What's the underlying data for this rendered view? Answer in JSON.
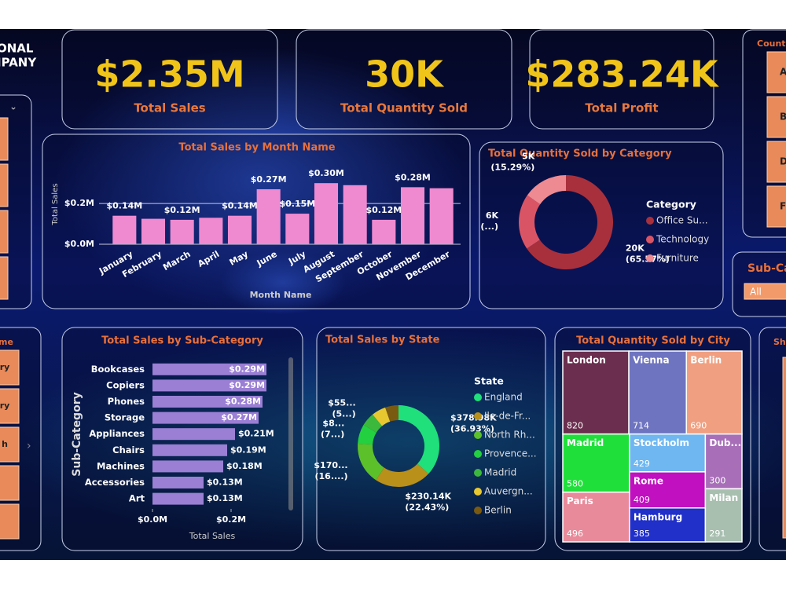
{
  "header": {
    "title_lines": [
      "ONAL",
      "IPANY"
    ]
  },
  "kpis": [
    {
      "value": "$2.35M",
      "label": "Total Sales"
    },
    {
      "value": "30K",
      "label": "Total Quantity Sold"
    },
    {
      "value": "$283.24K",
      "label": "Total Profit"
    }
  ],
  "slicers": {
    "country": {
      "title": "Countr...",
      "options": [
        "A",
        "Be",
        "De",
        "F"
      ]
    },
    "sub_category": {
      "title": "Sub-Ca...",
      "selected": "All"
    },
    "ship": {
      "title": "Shi..."
    },
    "left": {
      "title": "me",
      "options": [
        "ry",
        "ry",
        "h"
      ]
    }
  },
  "chart_data": [
    {
      "type": "bar",
      "title": "Total Sales by Month Name",
      "x_label": "Month Name",
      "y_label": "Total Sales",
      "categories": [
        "January",
        "February",
        "March",
        "April",
        "May",
        "June",
        "July",
        "August",
        "September",
        "October",
        "November",
        "December"
      ],
      "values": [
        140000,
        125000,
        120000,
        130000,
        140000,
        270000,
        150000,
        300000,
        290000,
        120000,
        280000,
        275000
      ],
      "value_labels": [
        "$0.14M",
        null,
        "$0.12M",
        null,
        "$0.14M",
        "$0.27M",
        "$0.15M",
        "$0.30M",
        null,
        "$0.12M",
        "$0.28M",
        null
      ],
      "color": "#f08ad0",
      "ylim": [
        0,
        320000
      ],
      "yticks": [
        {
          "value": 0,
          "label": "$0.0M"
        },
        {
          "value": 200000,
          "label": "$0.2M"
        }
      ],
      "grid": true
    },
    {
      "type": "donut",
      "title": "Total Quantity Sold by Category",
      "legend_title": "Category",
      "categories": [
        "Office Su...",
        "Technology",
        "Furniture"
      ],
      "values": [
        19670,
        5742,
        4587
      ],
      "value_labels": [
        "20K",
        "6K",
        "5K"
      ],
      "percent_labels": [
        "(65.57%)",
        "(...)",
        "(15.29%)"
      ],
      "colors": [
        "#a8303c",
        "#d95565",
        "#ee8a92"
      ]
    },
    {
      "type": "hbar",
      "title": "Total Sales by Sub-Category",
      "x_label": "Total Sales",
      "y_label": "Sub-Category",
      "categories": [
        "Bookcases",
        "Copiers",
        "Phones",
        "Storage",
        "Appliances",
        "Chairs",
        "Machines",
        "Accessories",
        "Art"
      ],
      "values": [
        290000,
        290000,
        280000,
        270000,
        210000,
        190000,
        180000,
        130000,
        130000
      ],
      "value_labels": [
        "$0.29M",
        "$0.29M",
        "$0.28M",
        "$0.27M",
        "$0.21M",
        "$0.19M",
        "$0.18M",
        "$0.13M",
        "$0.13M"
      ],
      "color": "#9a7fd4",
      "xlim": [
        0,
        320000
      ],
      "xticks": [
        {
          "value": 0,
          "label": "$0.0M"
        },
        {
          "value": 200000,
          "label": "$0.2M"
        }
      ]
    },
    {
      "type": "donut",
      "title": "Total Sales by State",
      "legend_title": "State",
      "categories": [
        "England",
        "Ile-de-Fr...",
        "North Rh...",
        "Provence...",
        "Madrid",
        "Auvergn...",
        "Berlin"
      ],
      "values": [
        378980,
        230140,
        170000,
        80000,
        55000,
        58000,
        54080
      ],
      "value_labels": [
        "$378.98K",
        "$230.14K",
        "$170...",
        "$8...",
        "$55...",
        null,
        null
      ],
      "percent_labels": [
        "(36.93%)",
        "(22.43%)",
        "(16....)",
        "(7...)",
        "(5...)",
        null,
        null
      ],
      "colors": [
        "#1fe07a",
        "#b8901a",
        "#5cc02a",
        "#22d040",
        "#3cb83c",
        "#e8c830",
        "#7a5a10"
      ]
    },
    {
      "type": "treemap",
      "title": "Total Quantity Sold by City",
      "categories": [
        "London",
        "Vienna",
        "Berlin",
        "Madrid",
        "Paris",
        "Stockholm",
        "Rome",
        "Hamburg",
        "Dub...",
        "Milan"
      ],
      "values": [
        820,
        714,
        690,
        580,
        496,
        429,
        409,
        385,
        300,
        291
      ],
      "colors": [
        "#6b2e4e",
        "#6f74c0",
        "#f0a080",
        "#1fe03a",
        "#e88a9a",
        "#6fb7f0",
        "#c010c0",
        "#2030c8",
        "#a86fb8",
        "#a8bfb0"
      ]
    }
  ]
}
